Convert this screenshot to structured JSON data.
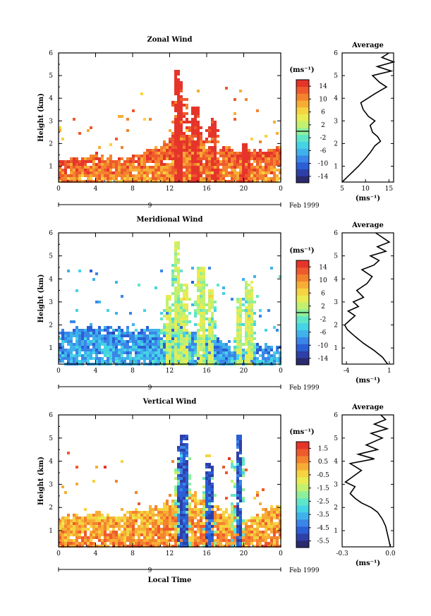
{
  "colormap": [
    "#2a2a6e",
    "#2f3fa8",
    "#2b5fd6",
    "#3a86e8",
    "#3fb2ec",
    "#45d3e6",
    "#5fe6c8",
    "#8eef9a",
    "#c2f070",
    "#e8ec52",
    "#f6d340",
    "#f7ad35",
    "#f4832e",
    "#ef5a2c",
    "#e5352a"
  ],
  "chart_data": [
    {
      "type": "heatmap",
      "title": "Zonal Wind",
      "ylabel": "Height (km)",
      "x_ticks": [
        "0",
        "4",
        "8",
        "12",
        "16",
        "20",
        "0"
      ],
      "y_ticks": [
        "1",
        "2",
        "3",
        "4",
        "5",
        "6"
      ],
      "xlim": [
        0,
        24
      ],
      "ylim": [
        0.3,
        6.0
      ],
      "date_marker": "9",
      "date_label": "Feb 1999",
      "colorbar": {
        "unit": "(ms⁻¹)",
        "range": [
          -16,
          16
        ],
        "zero_line": 0,
        "ticks": [
          "14",
          "10",
          "6",
          "2",
          "-2",
          "-6",
          "-10",
          "-14"
        ]
      },
      "dominant_value": 10,
      "spike_value": 16,
      "background_top_profile": [
        [
          0,
          1.3
        ],
        [
          2,
          1.4
        ],
        [
          4,
          1.5
        ],
        [
          6,
          1.3
        ],
        [
          8,
          1.4
        ],
        [
          10,
          1.8
        ],
        [
          12,
          2.2
        ],
        [
          13,
          2.8
        ],
        [
          14,
          2.4
        ],
        [
          16,
          2.0
        ],
        [
          18,
          1.8
        ],
        [
          20,
          1.5
        ],
        [
          22,
          1.7
        ],
        [
          24,
          1.9
        ]
      ],
      "spikes": [
        [
          12.8,
          5.2
        ],
        [
          13.2,
          4.7
        ],
        [
          14.8,
          3.6
        ],
        [
          16.7,
          3.3
        ],
        [
          20.2,
          2.0
        ]
      ],
      "average": {
        "title": "Average",
        "xlabel": "(ms⁻¹)",
        "x_ticks": [
          "5",
          "10",
          "15"
        ],
        "xlim": [
          5,
          16
        ],
        "height": [
          0.3,
          0.5,
          0.8,
          1.0,
          1.3,
          1.6,
          1.9,
          2.1,
          2.3,
          2.5,
          2.8,
          3.0,
          3.2,
          3.5,
          3.8,
          4.0,
          4.2,
          4.5,
          4.7,
          5.0,
          5.2,
          5.4,
          5.6,
          5.8,
          6.0
        ],
        "value": [
          5.0,
          6.0,
          7.5,
          8.5,
          9.8,
          11.0,
          12.0,
          13.2,
          12.6,
          11.5,
          11.0,
          12.0,
          10.6,
          9.5,
          9.0,
          10.5,
          12.0,
          14.5,
          13.0,
          11.5,
          15.5,
          12.5,
          16.0,
          13.5,
          15.0
        ]
      }
    },
    {
      "type": "heatmap",
      "title": "Meridional Wind",
      "ylabel": "Height (km)",
      "x_ticks": [
        "0",
        "4",
        "8",
        "12",
        "16",
        "20",
        "0"
      ],
      "y_ticks": [
        "1",
        "2",
        "3",
        "4",
        "5",
        "6"
      ],
      "xlim": [
        0,
        24
      ],
      "ylim": [
        0.3,
        6.0
      ],
      "date_marker": "9",
      "date_label": "Feb 1999",
      "colorbar": {
        "unit": "(ms⁻¹)",
        "range": [
          -16,
          16
        ],
        "zero_line": 0,
        "ticks": [
          "14",
          "10",
          "6",
          "2",
          "-2",
          "-6",
          "-10",
          "-14"
        ]
      },
      "dominant_value": -6,
      "spike_value": 3,
      "background_top_profile": [
        [
          0,
          1.7
        ],
        [
          2,
          1.8
        ],
        [
          4,
          2.0
        ],
        [
          6,
          1.9
        ],
        [
          8,
          1.8
        ],
        [
          10,
          1.9
        ],
        [
          12,
          1.9
        ],
        [
          13,
          2.0
        ],
        [
          15,
          1.6
        ],
        [
          17,
          1.4
        ],
        [
          19,
          1.2
        ],
        [
          20,
          1.0
        ],
        [
          22,
          1.1
        ],
        [
          24,
          1.1
        ]
      ],
      "spikes": [
        [
          11.8,
          3.3
        ],
        [
          12.8,
          5.6
        ],
        [
          13.6,
          3.8
        ],
        [
          15.4,
          4.5
        ],
        [
          16.5,
          3.6
        ],
        [
          19.5,
          3.2
        ],
        [
          20.6,
          3.9
        ]
      ],
      "average": {
        "title": "Average",
        "xlabel": "(ms⁻¹)",
        "x_ticks": [
          "-4",
          "1"
        ],
        "xlim": [
          -4.5,
          1.5
        ],
        "height": [
          0.3,
          0.6,
          0.9,
          1.2,
          1.5,
          1.8,
          2.0,
          2.2,
          2.4,
          2.6,
          2.8,
          3.0,
          3.2,
          3.5,
          3.8,
          4.1,
          4.4,
          4.6,
          4.8,
          5.0,
          5.2,
          5.4,
          5.6,
          5.8,
          6.0
        ],
        "value": [
          0.8,
          0.2,
          -0.8,
          -2.0,
          -3.0,
          -3.9,
          -4.2,
          -3.6,
          -3.0,
          -3.8,
          -2.6,
          -3.2,
          -2.0,
          -2.8,
          -1.6,
          -1.0,
          -2.2,
          -0.8,
          -0.2,
          -1.2,
          0.6,
          -0.4,
          1.0,
          0.2,
          -0.6
        ]
      }
    },
    {
      "type": "heatmap",
      "title": "Vertical Wind",
      "ylabel": "Height (km)",
      "xlabel": "Local Time",
      "x_ticks": [
        "0",
        "4",
        "8",
        "12",
        "16",
        "20",
        "0"
      ],
      "y_ticks": [
        "1",
        "2",
        "3",
        "4",
        "5",
        "6"
      ],
      "xlim": [
        0,
        24
      ],
      "ylim": [
        0.3,
        6.0
      ],
      "date_marker": "9",
      "date_label": "Feb 1999",
      "colorbar": {
        "unit": "(ms⁻¹)",
        "range": [
          -6.0,
          2.0
        ],
        "zero_line": null,
        "ticks": [
          "1.5",
          "0.5",
          "-0.5",
          "-1.5",
          "-2.5",
          "-3.5",
          "-4.5",
          "-5.5"
        ]
      },
      "dominant_value": 0.6,
      "spike_value": -4.8,
      "background_top_profile": [
        [
          0,
          1.6
        ],
        [
          2,
          1.6
        ],
        [
          4,
          1.8
        ],
        [
          6,
          1.6
        ],
        [
          8,
          1.9
        ],
        [
          10,
          2.0
        ],
        [
          12,
          2.3
        ],
        [
          14,
          2.8
        ],
        [
          16,
          2.2
        ],
        [
          18,
          1.9
        ],
        [
          20,
          1.5
        ],
        [
          22,
          1.8
        ],
        [
          24,
          2.2
        ]
      ],
      "spikes": [
        [
          13.3,
          4.7
        ],
        [
          13.6,
          5.1
        ],
        [
          16.3,
          3.9
        ],
        [
          19.4,
          5.1
        ]
      ],
      "average": {
        "title": "Average",
        "xlabel": "(ms⁻¹)",
        "x_ticks": [
          "-0.3",
          "0.0"
        ],
        "xlim": [
          -0.3,
          0.02
        ],
        "height": [
          0.3,
          0.6,
          0.9,
          1.2,
          1.5,
          1.8,
          2.0,
          2.2,
          2.4,
          2.6,
          2.9,
          3.1,
          3.3,
          3.6,
          3.9,
          4.1,
          4.3,
          4.5,
          4.7,
          5.0,
          5.2,
          5.4,
          5.6,
          5.8,
          6.0
        ],
        "value": [
          0.0,
          -0.01,
          -0.02,
          -0.03,
          -0.05,
          -0.08,
          -0.12,
          -0.18,
          -0.22,
          -0.25,
          -0.22,
          -0.28,
          -0.24,
          -0.18,
          -0.25,
          -0.1,
          -0.2,
          -0.08,
          -0.15,
          -0.05,
          -0.12,
          -0.02,
          -0.1,
          -0.03,
          -0.06
        ]
      }
    }
  ]
}
